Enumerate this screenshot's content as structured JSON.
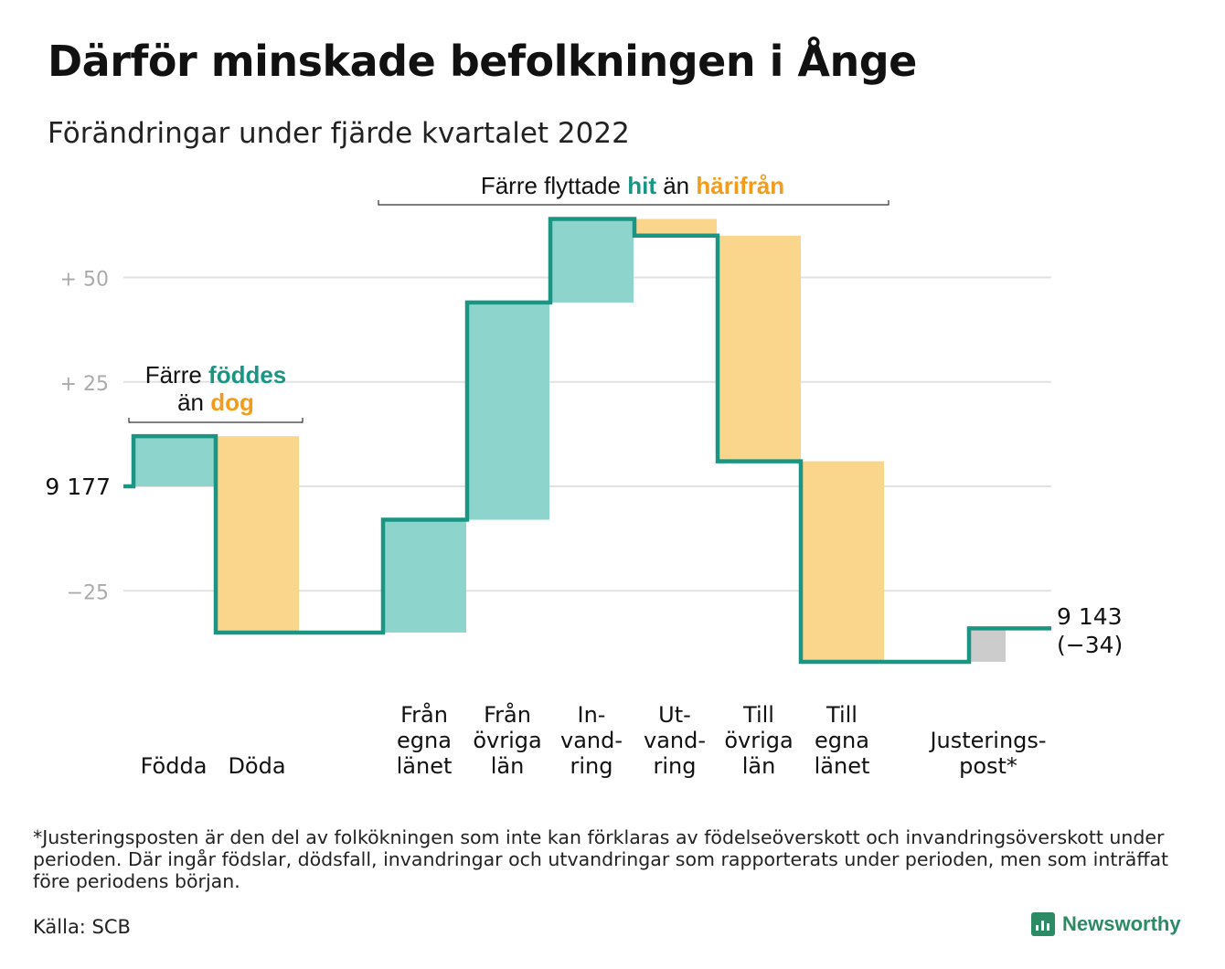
{
  "title": "Därför minskade befolkningen i Ånge",
  "subtitle": "Förändringar under fjärde kvartalet 2022",
  "colors": {
    "teal": "#1a9583",
    "teal_fill": "#8dd5cc",
    "orange_fill": "#fad58c",
    "orange_text": "#f39c1b",
    "gray_fill": "#cccccc",
    "grid": "#e2e2e2"
  },
  "chart_data": {
    "type": "waterfall",
    "start_label": "9 177",
    "end_label": [
      "9 143",
      "(−34)"
    ],
    "y_ticks": [
      {
        "value": 50,
        "label": "+ 50"
      },
      {
        "value": 25,
        "label": "+ 25"
      },
      {
        "value": 0,
        "label": "9 177"
      },
      {
        "value": -25,
        "label": "−25"
      }
    ],
    "ylim": [
      -45,
      66
    ],
    "steps": [
      {
        "label": [
          "Födda"
        ],
        "value": 12,
        "kind": "in"
      },
      {
        "label": [
          "Döda"
        ],
        "value": -47,
        "kind": "out"
      },
      {
        "label": [
          "Från",
          "egna",
          "länet"
        ],
        "value": 27,
        "kind": "in"
      },
      {
        "label": [
          "Från",
          "övriga",
          "län"
        ],
        "value": 52,
        "kind": "in"
      },
      {
        "label": [
          "In-",
          "vand-",
          "ring"
        ],
        "value": 20,
        "kind": "in"
      },
      {
        "label": [
          "Ut-",
          "vand-",
          "ring"
        ],
        "value": -4,
        "kind": "out"
      },
      {
        "label": [
          "Till",
          "övriga",
          "län"
        ],
        "value": -54,
        "kind": "out"
      },
      {
        "label": [
          "Till",
          "egna",
          "länet"
        ],
        "value": -48,
        "kind": "out"
      },
      {
        "label": [
          "Justerings-",
          "post*"
        ],
        "value": 8,
        "kind": "adj"
      }
    ],
    "annotations": {
      "births": {
        "pre": "Färre",
        "hl1": "föddes",
        "mid": "än",
        "hl2": "dog"
      },
      "moves": {
        "pre": "Färre flyttade",
        "hl1": "hit",
        "mid": "än",
        "hl2": "härifrån"
      }
    }
  },
  "footnote": "*Justeringsposten är den del av folkökningen som inte kan förklaras av födelseöverskott och invandringsöverskott under perioden. Där ingår födslar, dödsfall, invandringar och utvandringar som rapporterats under perioden, men som inträffat före periodens början.",
  "source": "Källa: SCB",
  "brand": "Newsworthy"
}
